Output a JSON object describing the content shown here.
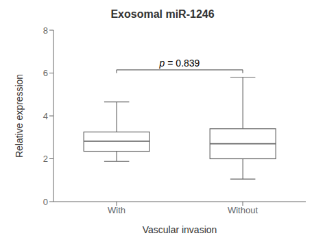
{
  "chart_data": {
    "type": "box",
    "title": "Exosomal miR-1246",
    "xlabel": "Vascular invasion",
    "ylabel": "Relative expression",
    "categories": [
      "With",
      "Without"
    ],
    "boxes": [
      {
        "whisker_low": 1.88,
        "q1": 2.35,
        "median": 2.82,
        "q3": 3.25,
        "whisker_high": 4.65
      },
      {
        "whisker_low": 1.05,
        "q1": 2.0,
        "median": 2.7,
        "q3": 3.4,
        "whisker_high": 5.8
      }
    ],
    "ylim": [
      0,
      8
    ],
    "yticks": [
      0,
      2,
      4,
      6,
      8
    ],
    "bracket": {
      "from": "With",
      "to": "Without",
      "y": 6.15,
      "drop": 0.15
    },
    "annotation": "p = 0.839",
    "color": "#666666",
    "grid": false
  }
}
